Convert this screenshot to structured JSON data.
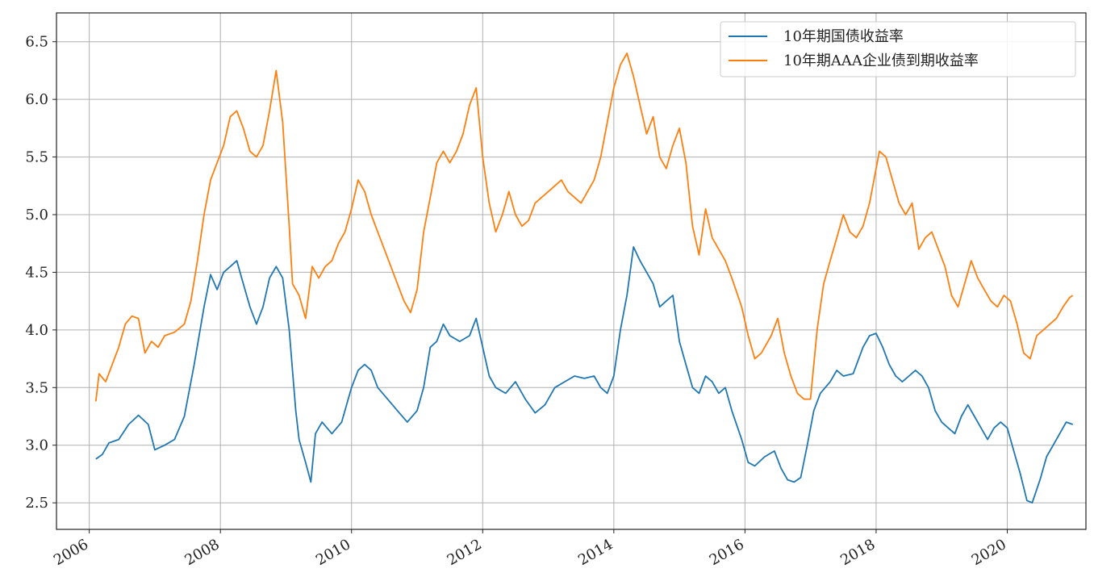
{
  "chart_data": {
    "type": "line",
    "title": "",
    "xlabel": "",
    "ylabel": "",
    "x_ticks": [
      "2006",
      "2008",
      "2010",
      "2012",
      "2014",
      "2016",
      "2018",
      "2020"
    ],
    "y_ticks": [
      "2.5",
      "3.0",
      "3.5",
      "4.0",
      "4.5",
      "5.0",
      "5.5",
      "6.0",
      "6.5"
    ],
    "xlim": [
      2005.5,
      2021.2
    ],
    "ylim": [
      2.27,
      6.75
    ],
    "grid": true,
    "legend_position": "top-right",
    "series": [
      {
        "name": "10年期国债收益率",
        "color": "#1f77b4",
        "points": [
          [
            2006.1,
            2.88
          ],
          [
            2006.2,
            2.92
          ],
          [
            2006.3,
            3.02
          ],
          [
            2006.45,
            3.05
          ],
          [
            2006.6,
            3.18
          ],
          [
            2006.75,
            3.26
          ],
          [
            2006.9,
            3.18
          ],
          [
            2007.0,
            2.96
          ],
          [
            2007.15,
            3.0
          ],
          [
            2007.3,
            3.05
          ],
          [
            2007.45,
            3.25
          ],
          [
            2007.6,
            3.7
          ],
          [
            2007.75,
            4.2
          ],
          [
            2007.85,
            4.48
          ],
          [
            2007.95,
            4.35
          ],
          [
            2008.05,
            4.5
          ],
          [
            2008.15,
            4.55
          ],
          [
            2008.25,
            4.6
          ],
          [
            2008.35,
            4.4
          ],
          [
            2008.45,
            4.2
          ],
          [
            2008.55,
            4.05
          ],
          [
            2008.65,
            4.2
          ],
          [
            2008.75,
            4.45
          ],
          [
            2008.85,
            4.55
          ],
          [
            2008.95,
            4.45
          ],
          [
            2009.05,
            4.0
          ],
          [
            2009.15,
            3.3
          ],
          [
            2009.2,
            3.05
          ],
          [
            2009.3,
            2.85
          ],
          [
            2009.38,
            2.68
          ],
          [
            2009.45,
            3.1
          ],
          [
            2009.55,
            3.2
          ],
          [
            2009.7,
            3.1
          ],
          [
            2009.85,
            3.2
          ],
          [
            2010.0,
            3.5
          ],
          [
            2010.1,
            3.65
          ],
          [
            2010.2,
            3.7
          ],
          [
            2010.3,
            3.65
          ],
          [
            2010.4,
            3.5
          ],
          [
            2010.55,
            3.4
          ],
          [
            2010.7,
            3.3
          ],
          [
            2010.85,
            3.2
          ],
          [
            2011.0,
            3.3
          ],
          [
            2011.1,
            3.5
          ],
          [
            2011.2,
            3.85
          ],
          [
            2011.3,
            3.9
          ],
          [
            2011.4,
            4.05
          ],
          [
            2011.5,
            3.95
          ],
          [
            2011.65,
            3.9
          ],
          [
            2011.8,
            3.95
          ],
          [
            2011.9,
            4.1
          ],
          [
            2012.0,
            3.85
          ],
          [
            2012.1,
            3.6
          ],
          [
            2012.2,
            3.5
          ],
          [
            2012.35,
            3.45
          ],
          [
            2012.5,
            3.55
          ],
          [
            2012.65,
            3.4
          ],
          [
            2012.8,
            3.28
          ],
          [
            2012.95,
            3.35
          ],
          [
            2013.1,
            3.5
          ],
          [
            2013.25,
            3.55
          ],
          [
            2013.4,
            3.6
          ],
          [
            2013.55,
            3.58
          ],
          [
            2013.7,
            3.6
          ],
          [
            2013.8,
            3.5
          ],
          [
            2013.9,
            3.45
          ],
          [
            2014.0,
            3.6
          ],
          [
            2014.1,
            4.0
          ],
          [
            2014.2,
            4.3
          ],
          [
            2014.3,
            4.72
          ],
          [
            2014.4,
            4.6
          ],
          [
            2014.5,
            4.5
          ],
          [
            2014.6,
            4.4
          ],
          [
            2014.7,
            4.2
          ],
          [
            2014.8,
            4.25
          ],
          [
            2014.9,
            4.3
          ],
          [
            2015.0,
            3.9
          ],
          [
            2015.1,
            3.7
          ],
          [
            2015.2,
            3.5
          ],
          [
            2015.3,
            3.45
          ],
          [
            2015.4,
            3.6
          ],
          [
            2015.5,
            3.55
          ],
          [
            2015.6,
            3.45
          ],
          [
            2015.7,
            3.5
          ],
          [
            2015.8,
            3.3
          ],
          [
            2015.95,
            3.05
          ],
          [
            2016.05,
            2.85
          ],
          [
            2016.15,
            2.82
          ],
          [
            2016.3,
            2.9
          ],
          [
            2016.45,
            2.95
          ],
          [
            2016.55,
            2.8
          ],
          [
            2016.65,
            2.7
          ],
          [
            2016.75,
            2.68
          ],
          [
            2016.85,
            2.72
          ],
          [
            2016.95,
            3.0
          ],
          [
            2017.05,
            3.3
          ],
          [
            2017.15,
            3.45
          ],
          [
            2017.3,
            3.55
          ],
          [
            2017.4,
            3.65
          ],
          [
            2017.5,
            3.6
          ],
          [
            2017.65,
            3.62
          ],
          [
            2017.8,
            3.85
          ],
          [
            2017.9,
            3.95
          ],
          [
            2018.0,
            3.97
          ],
          [
            2018.1,
            3.85
          ],
          [
            2018.2,
            3.7
          ],
          [
            2018.3,
            3.6
          ],
          [
            2018.4,
            3.55
          ],
          [
            2018.5,
            3.6
          ],
          [
            2018.6,
            3.65
          ],
          [
            2018.7,
            3.6
          ],
          [
            2018.8,
            3.5
          ],
          [
            2018.9,
            3.3
          ],
          [
            2019.0,
            3.2
          ],
          [
            2019.1,
            3.15
          ],
          [
            2019.2,
            3.1
          ],
          [
            2019.3,
            3.25
          ],
          [
            2019.4,
            3.35
          ],
          [
            2019.5,
            3.25
          ],
          [
            2019.6,
            3.15
          ],
          [
            2019.7,
            3.05
          ],
          [
            2019.8,
            3.15
          ],
          [
            2019.9,
            3.2
          ],
          [
            2020.0,
            3.15
          ],
          [
            2020.1,
            2.95
          ],
          [
            2020.2,
            2.75
          ],
          [
            2020.3,
            2.52
          ],
          [
            2020.38,
            2.5
          ],
          [
            2020.5,
            2.7
          ],
          [
            2020.6,
            2.9
          ],
          [
            2020.7,
            3.0
          ],
          [
            2020.8,
            3.1
          ],
          [
            2020.9,
            3.2
          ],
          [
            2021.0,
            3.18
          ]
        ]
      },
      {
        "name": "10年期AAA企业债到期收益率",
        "color": "#ff7f0e",
        "points": [
          [
            2006.1,
            3.38
          ],
          [
            2006.15,
            3.62
          ],
          [
            2006.25,
            3.55
          ],
          [
            2006.35,
            3.7
          ],
          [
            2006.45,
            3.85
          ],
          [
            2006.55,
            4.05
          ],
          [
            2006.65,
            4.12
          ],
          [
            2006.75,
            4.1
          ],
          [
            2006.85,
            3.8
          ],
          [
            2006.95,
            3.9
          ],
          [
            2007.05,
            3.85
          ],
          [
            2007.15,
            3.95
          ],
          [
            2007.3,
            3.98
          ],
          [
            2007.45,
            4.05
          ],
          [
            2007.55,
            4.25
          ],
          [
            2007.65,
            4.6
          ],
          [
            2007.75,
            5.0
          ],
          [
            2007.85,
            5.3
          ],
          [
            2007.95,
            5.45
          ],
          [
            2008.05,
            5.6
          ],
          [
            2008.15,
            5.85
          ],
          [
            2008.25,
            5.9
          ],
          [
            2008.35,
            5.75
          ],
          [
            2008.45,
            5.55
          ],
          [
            2008.55,
            5.5
          ],
          [
            2008.65,
            5.6
          ],
          [
            2008.75,
            5.9
          ],
          [
            2008.85,
            6.25
          ],
          [
            2008.95,
            5.8
          ],
          [
            2009.05,
            4.9
          ],
          [
            2009.1,
            4.4
          ],
          [
            2009.2,
            4.3
          ],
          [
            2009.3,
            4.1
          ],
          [
            2009.4,
            4.55
          ],
          [
            2009.5,
            4.45
          ],
          [
            2009.6,
            4.55
          ],
          [
            2009.7,
            4.6
          ],
          [
            2009.8,
            4.75
          ],
          [
            2009.9,
            4.85
          ],
          [
            2010.0,
            5.05
          ],
          [
            2010.1,
            5.3
          ],
          [
            2010.2,
            5.2
          ],
          [
            2010.3,
            5.0
          ],
          [
            2010.4,
            4.85
          ],
          [
            2010.5,
            4.7
          ],
          [
            2010.6,
            4.55
          ],
          [
            2010.7,
            4.4
          ],
          [
            2010.8,
            4.25
          ],
          [
            2010.9,
            4.15
          ],
          [
            2011.0,
            4.35
          ],
          [
            2011.1,
            4.85
          ],
          [
            2011.2,
            5.15
          ],
          [
            2011.3,
            5.45
          ],
          [
            2011.4,
            5.55
          ],
          [
            2011.5,
            5.45
          ],
          [
            2011.6,
            5.55
          ],
          [
            2011.7,
            5.7
          ],
          [
            2011.8,
            5.95
          ],
          [
            2011.9,
            6.1
          ],
          [
            2012.0,
            5.5
          ],
          [
            2012.1,
            5.1
          ],
          [
            2012.2,
            4.85
          ],
          [
            2012.3,
            5.0
          ],
          [
            2012.4,
            5.2
          ],
          [
            2012.5,
            5.0
          ],
          [
            2012.6,
            4.9
          ],
          [
            2012.7,
            4.95
          ],
          [
            2012.8,
            5.1
          ],
          [
            2012.9,
            5.15
          ],
          [
            2013.0,
            5.2
          ],
          [
            2013.1,
            5.25
          ],
          [
            2013.2,
            5.3
          ],
          [
            2013.3,
            5.2
          ],
          [
            2013.4,
            5.15
          ],
          [
            2013.5,
            5.1
          ],
          [
            2013.6,
            5.2
          ],
          [
            2013.7,
            5.3
          ],
          [
            2013.8,
            5.5
          ],
          [
            2013.9,
            5.8
          ],
          [
            2014.0,
            6.1
          ],
          [
            2014.1,
            6.3
          ],
          [
            2014.2,
            6.4
          ],
          [
            2014.3,
            6.2
          ],
          [
            2014.4,
            5.95
          ],
          [
            2014.5,
            5.7
          ],
          [
            2014.6,
            5.85
          ],
          [
            2014.7,
            5.5
          ],
          [
            2014.8,
            5.4
          ],
          [
            2014.9,
            5.6
          ],
          [
            2015.0,
            5.75
          ],
          [
            2015.1,
            5.45
          ],
          [
            2015.2,
            4.9
          ],
          [
            2015.3,
            4.65
          ],
          [
            2015.4,
            5.05
          ],
          [
            2015.5,
            4.8
          ],
          [
            2015.6,
            4.7
          ],
          [
            2015.7,
            4.6
          ],
          [
            2015.8,
            4.45
          ],
          [
            2015.95,
            4.2
          ],
          [
            2016.05,
            3.95
          ],
          [
            2016.15,
            3.75
          ],
          [
            2016.25,
            3.8
          ],
          [
            2016.4,
            3.95
          ],
          [
            2016.5,
            4.1
          ],
          [
            2016.6,
            3.8
          ],
          [
            2016.7,
            3.6
          ],
          [
            2016.8,
            3.45
          ],
          [
            2016.9,
            3.4
          ],
          [
            2017.0,
            3.4
          ],
          [
            2017.1,
            4.0
          ],
          [
            2017.2,
            4.4
          ],
          [
            2017.3,
            4.6
          ],
          [
            2017.4,
            4.8
          ],
          [
            2017.5,
            5.0
          ],
          [
            2017.6,
            4.85
          ],
          [
            2017.7,
            4.8
          ],
          [
            2017.8,
            4.9
          ],
          [
            2017.9,
            5.1
          ],
          [
            2018.0,
            5.4
          ],
          [
            2018.05,
            5.55
          ],
          [
            2018.15,
            5.5
          ],
          [
            2018.25,
            5.3
          ],
          [
            2018.35,
            5.1
          ],
          [
            2018.45,
            5.0
          ],
          [
            2018.55,
            5.1
          ],
          [
            2018.65,
            4.7
          ],
          [
            2018.75,
            4.8
          ],
          [
            2018.85,
            4.85
          ],
          [
            2018.95,
            4.7
          ],
          [
            2019.05,
            4.55
          ],
          [
            2019.15,
            4.3
          ],
          [
            2019.25,
            4.2
          ],
          [
            2019.35,
            4.4
          ],
          [
            2019.45,
            4.6
          ],
          [
            2019.55,
            4.45
          ],
          [
            2019.65,
            4.35
          ],
          [
            2019.75,
            4.25
          ],
          [
            2019.85,
            4.2
          ],
          [
            2019.95,
            4.3
          ],
          [
            2020.05,
            4.25
          ],
          [
            2020.15,
            4.05
          ],
          [
            2020.25,
            3.8
          ],
          [
            2020.35,
            3.75
          ],
          [
            2020.45,
            3.95
          ],
          [
            2020.55,
            4.0
          ],
          [
            2020.65,
            4.05
          ],
          [
            2020.75,
            4.1
          ],
          [
            2020.85,
            4.2
          ],
          [
            2020.95,
            4.28
          ],
          [
            2021.0,
            4.3
          ]
        ]
      }
    ]
  }
}
